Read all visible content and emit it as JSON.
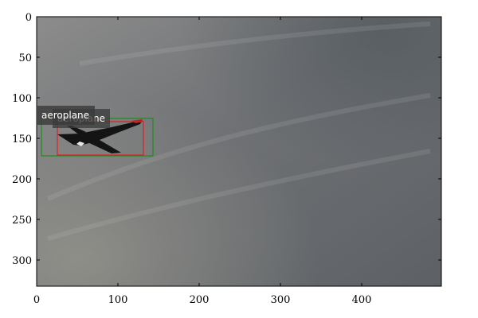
{
  "image": {
    "description_scene": "overcast grey sky with an airplane",
    "sky_colors": [
      "#8a8a8a",
      "#6e7073",
      "#5b5f63"
    ]
  },
  "axes": {
    "x_ticks": [
      "0",
      "100",
      "200",
      "300",
      "400"
    ],
    "y_ticks": [
      "0",
      "50",
      "100",
      "150",
      "200",
      "250",
      "300"
    ]
  },
  "detections": [
    {
      "label": "aeroplane",
      "box_color": "#1a8f1a",
      "role": "ground-truth"
    },
    {
      "label": "aeroplane",
      "box_color": "#e02020",
      "role": "prediction"
    }
  ]
}
